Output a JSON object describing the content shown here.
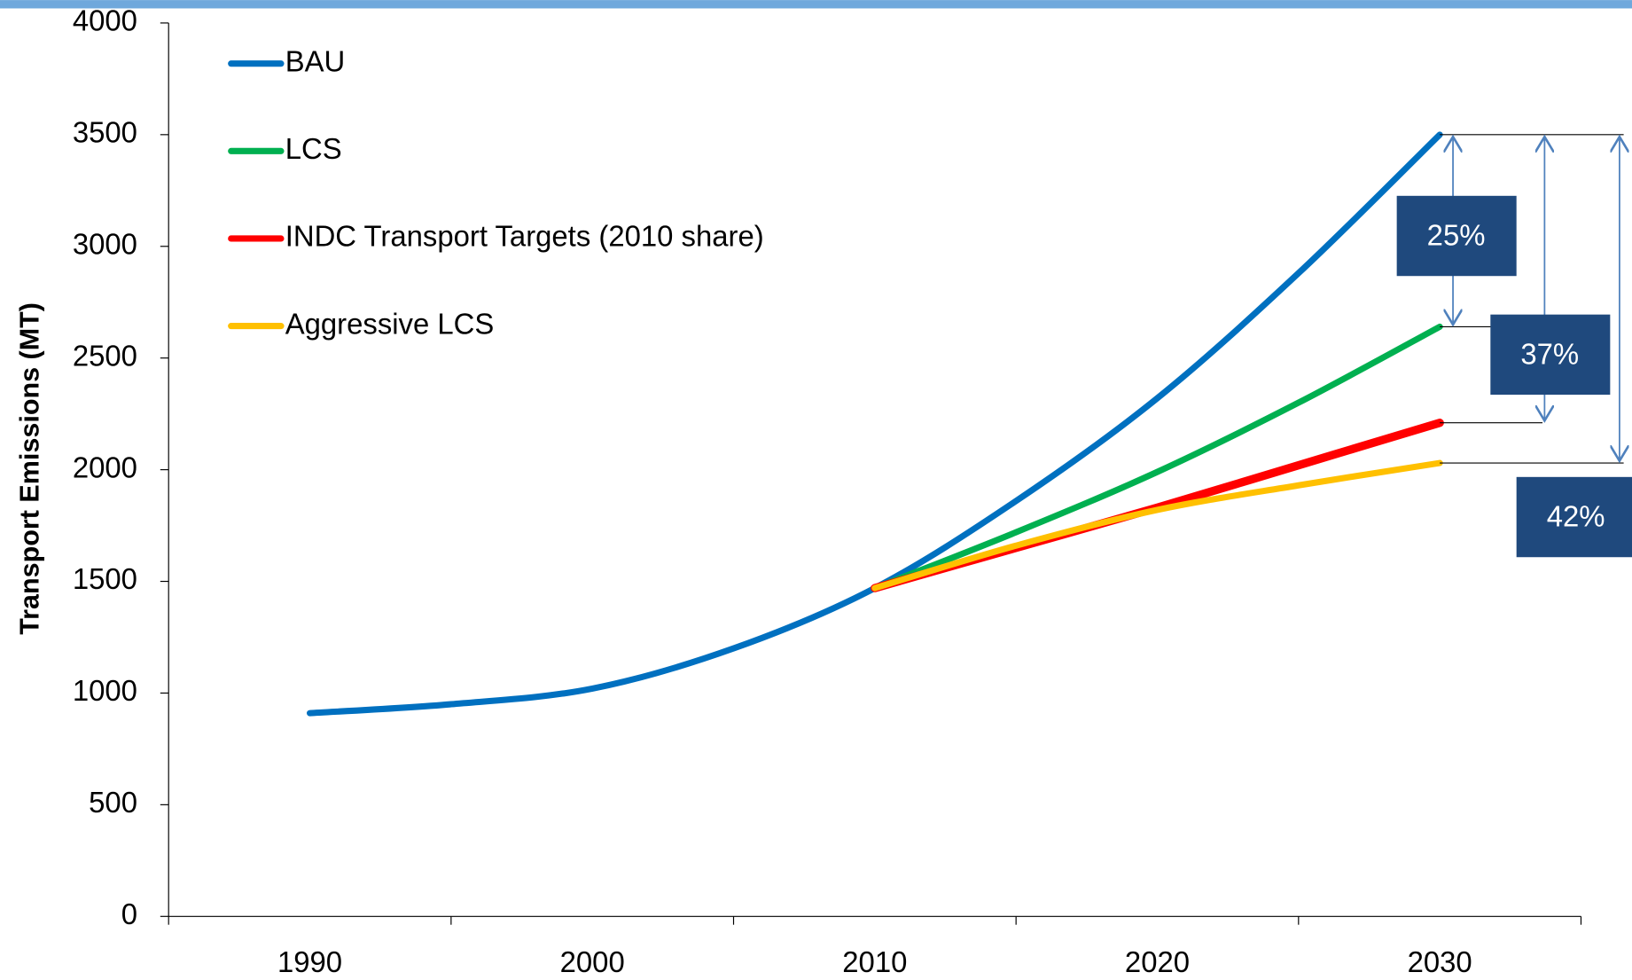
{
  "chart_data": {
    "type": "line",
    "ylabel": "Transport Emissions (MT)",
    "x": [
      1990,
      1995,
      2000,
      2005,
      2010,
      2015,
      2020,
      2025,
      2030
    ],
    "series": [
      {
        "name": "BAU",
        "color": "#0070c0",
        "values": [
          910,
          950,
          1020,
          1200,
          1470,
          1860,
          2320,
          2880,
          3500
        ]
      },
      {
        "name": "LCS",
        "color": "#00b050",
        "values": [
          null,
          null,
          null,
          null,
          1470,
          1720,
          1990,
          2300,
          2640
        ]
      },
      {
        "name": "INDC Transport Targets (2010 share)",
        "color": "#ff0000",
        "values": [
          null,
          null,
          null,
          null,
          1470,
          1650,
          1830,
          2020,
          2210
        ]
      },
      {
        "name": "Aggressive LCS",
        "color": "#ffc000",
        "values": [
          null,
          null,
          null,
          null,
          1470,
          1660,
          1820,
          1930,
          2030
        ]
      }
    ],
    "xlim": [
      1985,
      2035
    ],
    "xticks": [
      1990,
      2000,
      2010,
      2020,
      2030
    ],
    "ylim": [
      0,
      4000
    ],
    "yticks": [
      0,
      500,
      1000,
      1500,
      2000,
      2500,
      3000,
      3500,
      4000
    ],
    "legend": "upper left",
    "annotations": [
      "25%",
      "37%",
      "42%"
    ]
  }
}
